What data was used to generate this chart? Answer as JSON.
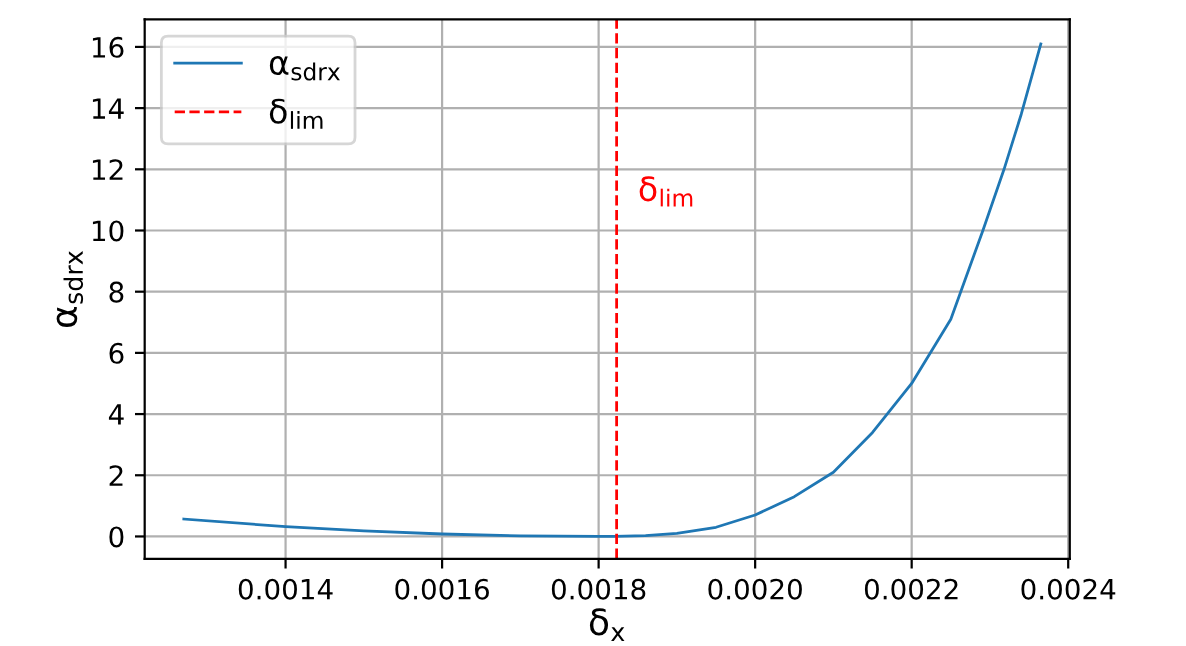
{
  "chart_data": {
    "type": "line",
    "xlabel": "δ$_{x}$",
    "ylabel": "α$_{sdrx}$",
    "x": [
      0.00127,
      0.0014,
      0.0015,
      0.0016,
      0.0017,
      0.0018,
      0.00182,
      0.00186,
      0.0019,
      0.00195,
      0.002,
      0.00205,
      0.0021,
      0.00215,
      0.0022,
      0.00225,
      0.002291,
      0.002318,
      0.00234,
      0.002365
    ],
    "series": [
      {
        "name": "α$_{sdrx}$",
        "color": "#1f77b4",
        "values": [
          0.57,
          0.32,
          0.18,
          0.08,
          0.02,
          0.0,
          0.0,
          0.03,
          0.1,
          0.3,
          0.7,
          1.3,
          2.1,
          3.4,
          5.0,
          7.1,
          10.0,
          12.0,
          13.8,
          16.1
        ]
      }
    ],
    "ref_lines": [
      {
        "axis": "x",
        "value": 0.001823,
        "label": "δ$_{lim}$",
        "color": "#ff0000",
        "line_style": "dashed"
      }
    ],
    "xlim": [
      0.00122,
      0.002402
    ],
    "ylim": [
      -0.73,
      16.9
    ],
    "xticks": [
      {
        "value": 0.0014,
        "label": "0.0014"
      },
      {
        "value": 0.0016,
        "label": "0.0016"
      },
      {
        "value": 0.0018,
        "label": "0.0018"
      },
      {
        "value": 0.002,
        "label": "0.0020"
      },
      {
        "value": 0.0022,
        "label": "0.0022"
      },
      {
        "value": 0.0024,
        "label": "0.0024"
      }
    ],
    "yticks": [
      0,
      2,
      4,
      6,
      8,
      10,
      12,
      14,
      16
    ],
    "grid": true,
    "legend": "top left",
    "marker": "none",
    "line_style": "solid"
  }
}
